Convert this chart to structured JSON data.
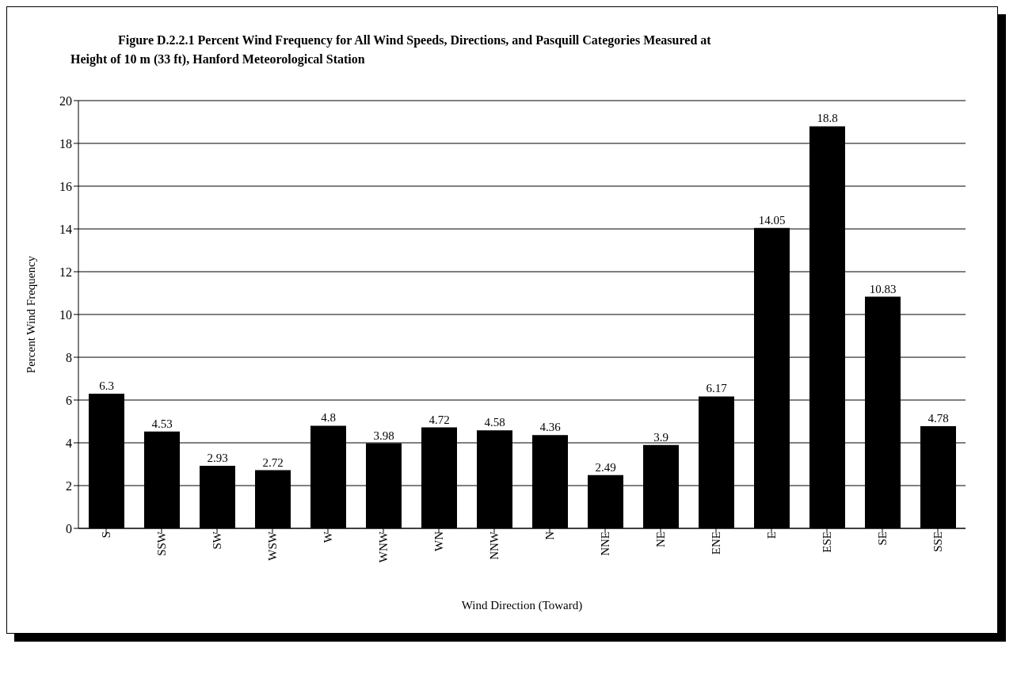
{
  "chart_data": {
    "type": "bar",
    "title": "Figure D.2.2.1  Percent Wind Frequency for All Wind Speeds, Directions, and Pasquill Categories Measured at Height of 10 m (33 ft), Hanford Meteorological Station",
    "xlabel": "Wind Direction  (Toward)",
    "ylabel": "Percent Wind Frequency",
    "categories": [
      "S",
      "SSW",
      "SW",
      "WSW",
      "W",
      "WNW",
      "WN",
      "NNW",
      "N",
      "NNE",
      "NE",
      "ENE",
      "E",
      "ESE",
      "SE",
      "SSE"
    ],
    "values": [
      6.3,
      4.53,
      2.93,
      2.72,
      4.8,
      3.98,
      4.72,
      4.58,
      4.36,
      2.49,
      3.9,
      6.17,
      14.05,
      18.8,
      10.83,
      4.78
    ],
    "color": "#000000",
    "ylim": [
      0,
      20
    ],
    "yticks": [
      0,
      2,
      4,
      6,
      8,
      10,
      12,
      14,
      16,
      18,
      20
    ],
    "grid": "y",
    "data_labels": true
  }
}
